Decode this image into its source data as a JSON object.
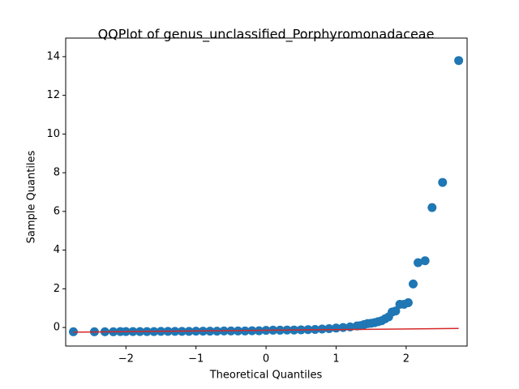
{
  "chart_data": {
    "type": "scatter",
    "title": "QQPlot of genus_unclassified_Porphyromonadaceae",
    "xlabel": "Theoretical Quantiles",
    "ylabel": "Sample Quantiles",
    "x": [
      -2.75,
      -2.45,
      -2.3,
      -2.18,
      -2.08,
      -2.0,
      -1.9,
      -1.8,
      -1.7,
      -1.6,
      -1.5,
      -1.4,
      -1.3,
      -1.2,
      -1.1,
      -1.0,
      -0.9,
      -0.8,
      -0.7,
      -0.6,
      -0.5,
      -0.4,
      -0.3,
      -0.2,
      -0.1,
      0,
      0.1,
      0.2,
      0.3,
      0.4,
      0.5,
      0.6,
      0.7,
      0.8,
      0.9,
      1.0,
      1.1,
      1.2,
      1.3,
      1.35,
      1.4,
      1.45,
      1.5,
      1.55,
      1.6,
      1.65,
      1.7,
      1.75,
      1.8,
      1.85,
      1.91,
      1.97,
      2.03,
      2.1,
      2.17,
      2.27,
      2.37,
      2.52,
      2.75
    ],
    "values": [
      -0.22,
      -0.22,
      -0.22,
      -0.22,
      -0.21,
      -0.21,
      -0.21,
      -0.21,
      -0.21,
      -0.21,
      -0.2,
      -0.2,
      -0.2,
      -0.2,
      -0.2,
      -0.19,
      -0.19,
      -0.19,
      -0.19,
      -0.18,
      -0.18,
      -0.18,
      -0.18,
      -0.17,
      -0.17,
      -0.15,
      -0.14,
      -0.14,
      -0.13,
      -0.13,
      -0.12,
      -0.11,
      -0.1,
      -0.08,
      -0.06,
      -0.03,
      0,
      0.03,
      0.08,
      0.1,
      0.15,
      0.2,
      0.22,
      0.25,
      0.3,
      0.35,
      0.45,
      0.55,
      0.8,
      0.85,
      1.2,
      1.2,
      1.28,
      2.25,
      3.35,
      3.45,
      6.2,
      7.5,
      13.8
    ],
    "color": "#1f77b4",
    "fit_line": {
      "x": [
        -2.75,
        2.75
      ],
      "y": [
        -0.24,
        -0.05
      ],
      "color": "#d62728"
    },
    "xlim": [
      -2.86,
      2.87
    ],
    "ylim": [
      -0.96,
      14.96
    ],
    "xticks": [
      {
        "value": -2,
        "label": "−2"
      },
      {
        "value": -1,
        "label": "−1"
      },
      0,
      1,
      2
    ],
    "yticks": [
      0,
      2,
      4,
      6,
      8,
      10,
      12,
      14
    ]
  }
}
